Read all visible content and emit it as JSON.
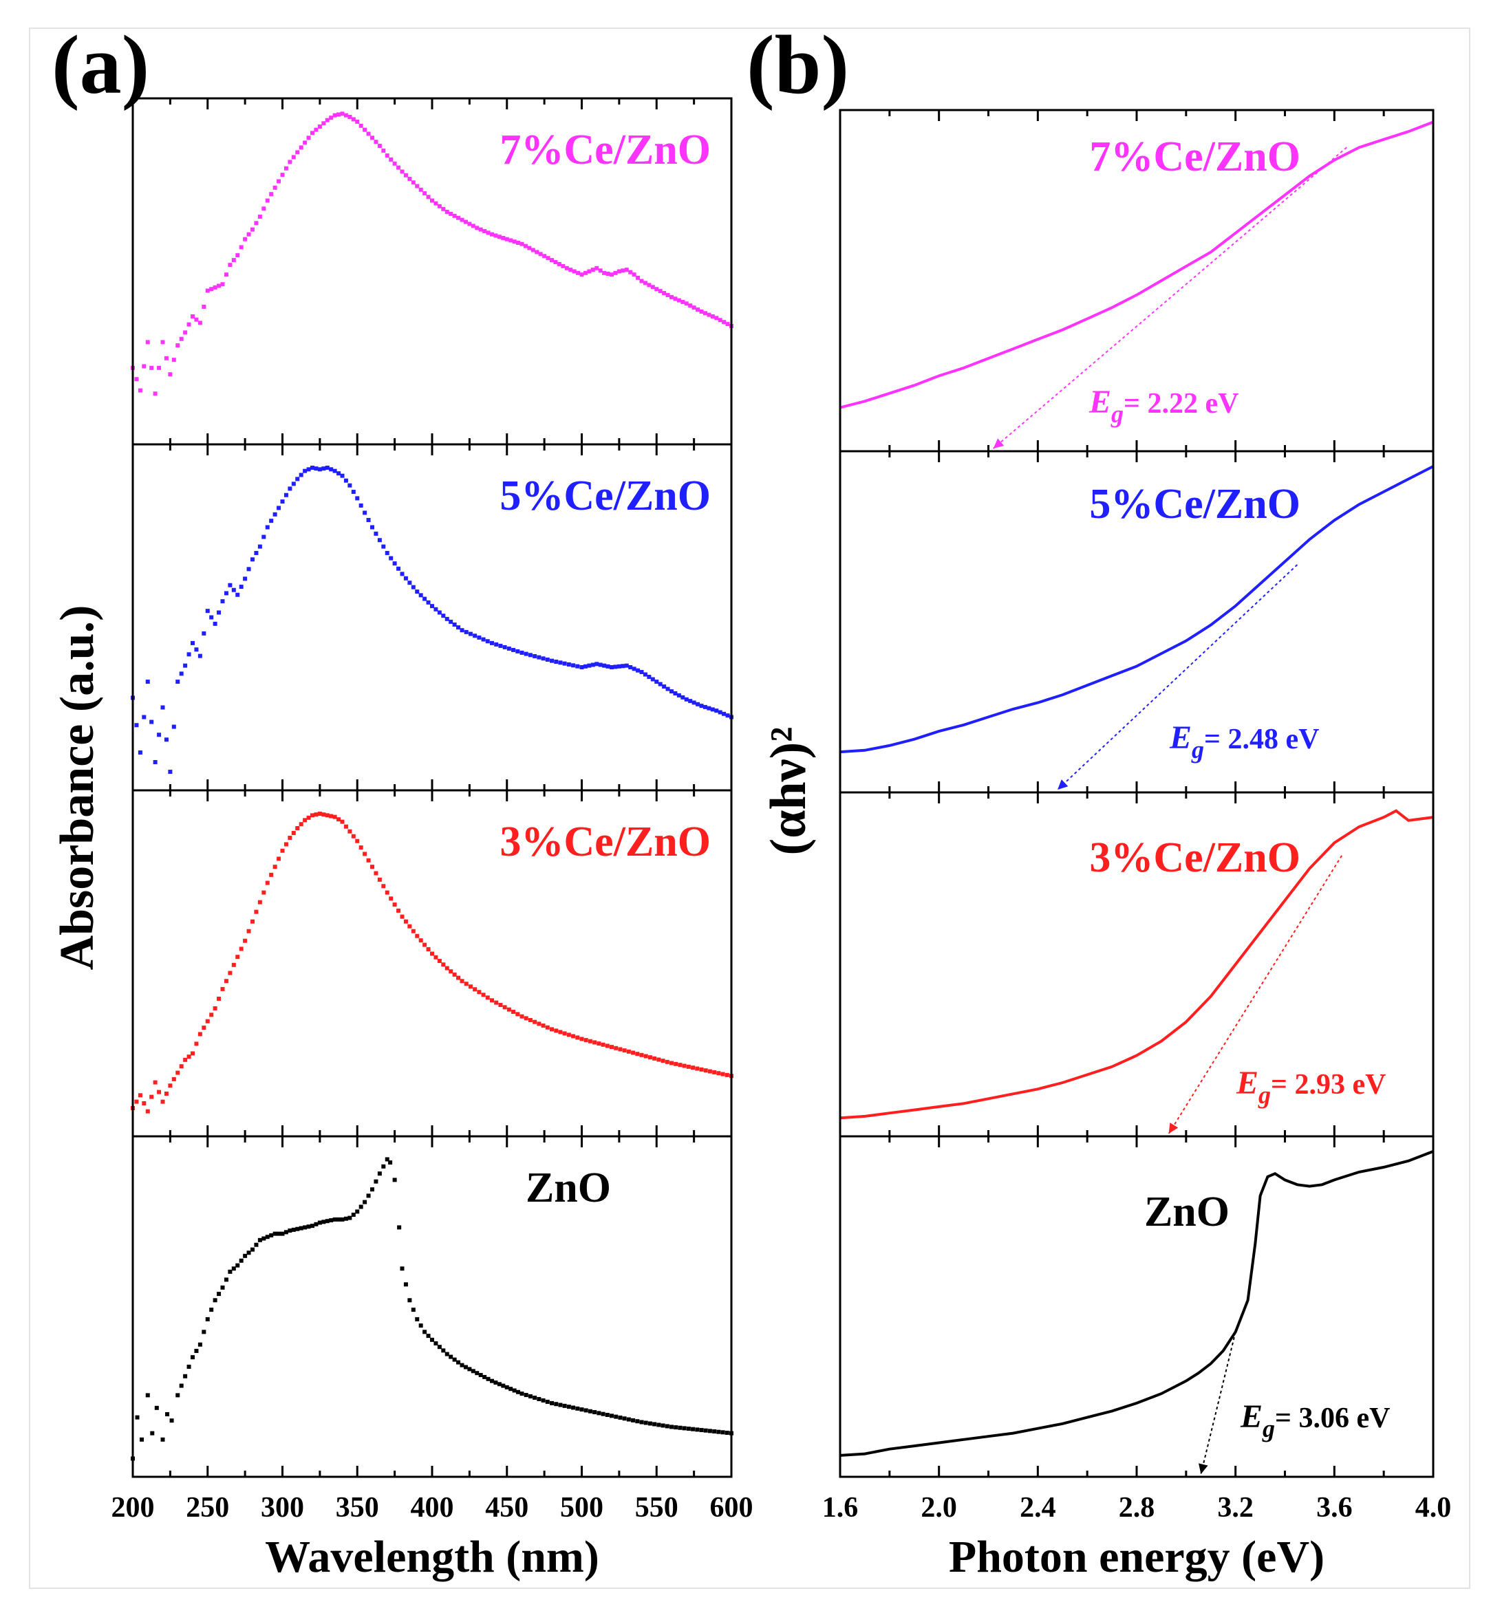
{
  "figure": {
    "panel_a_label": "(a)",
    "panel_b_label": "(b)"
  },
  "colors": {
    "ce7": "#ff33ff",
    "ce5": "#1f1fff",
    "ce3": "#ff1f1f",
    "zno": "#000000"
  },
  "chart_data": [
    {
      "type": "scatter",
      "panel": "a",
      "xlabel": "Wavelength (nm)",
      "ylabel": "Absorbance (a.u.)",
      "xlim": [
        200,
        600
      ],
      "xticks": [
        "200",
        "250",
        "300",
        "350",
        "400",
        "450",
        "500",
        "550",
        "600"
      ],
      "ylim": [
        0,
        1
      ],
      "grid": false,
      "series": [
        {
          "name": "7%Ce/ZnO",
          "color": "#ff33ff",
          "x": [
            200,
            205,
            210,
            215,
            220,
            225,
            230,
            235,
            240,
            245,
            250,
            255,
            260,
            265,
            270,
            275,
            280,
            285,
            290,
            295,
            300,
            305,
            310,
            315,
            320,
            325,
            330,
            335,
            340,
            345,
            350,
            355,
            360,
            365,
            370,
            375,
            380,
            390,
            400,
            410,
            420,
            430,
            440,
            450,
            460,
            470,
            480,
            490,
            500,
            505,
            510,
            515,
            520,
            525,
            530,
            535,
            540,
            550,
            560,
            570,
            580,
            590,
            600
          ],
          "y": [
            0.2,
            0.13,
            0.28,
            0.12,
            0.28,
            0.18,
            0.27,
            0.31,
            0.36,
            0.34,
            0.44,
            0.45,
            0.46,
            0.52,
            0.55,
            0.6,
            0.63,
            0.67,
            0.72,
            0.76,
            0.8,
            0.84,
            0.87,
            0.9,
            0.93,
            0.95,
            0.97,
            0.985,
            0.99,
            0.98,
            0.965,
            0.94,
            0.915,
            0.89,
            0.86,
            0.835,
            0.81,
            0.765,
            0.72,
            0.685,
            0.66,
            0.635,
            0.615,
            0.6,
            0.585,
            0.56,
            0.535,
            0.51,
            0.49,
            0.5,
            0.51,
            0.495,
            0.49,
            0.5,
            0.505,
            0.49,
            0.47,
            0.445,
            0.42,
            0.4,
            0.375,
            0.355,
            0.33
          ]
        },
        {
          "name": "5%Ce/ZnO",
          "color": "#1f1fff",
          "x": [
            200,
            205,
            210,
            215,
            220,
            225,
            230,
            235,
            240,
            245,
            250,
            255,
            260,
            265,
            270,
            275,
            280,
            285,
            290,
            295,
            300,
            305,
            310,
            315,
            320,
            325,
            330,
            335,
            340,
            345,
            350,
            360,
            370,
            380,
            390,
            400,
            410,
            420,
            440,
            460,
            480,
            500,
            505,
            510,
            520,
            530,
            540,
            550,
            560,
            570,
            580,
            590,
            600
          ],
          "y": [
            0.25,
            0.08,
            0.3,
            0.05,
            0.22,
            0.02,
            0.3,
            0.35,
            0.42,
            0.38,
            0.52,
            0.48,
            0.55,
            0.6,
            0.57,
            0.62,
            0.68,
            0.72,
            0.78,
            0.82,
            0.86,
            0.9,
            0.93,
            0.955,
            0.965,
            0.96,
            0.965,
            0.955,
            0.94,
            0.91,
            0.87,
            0.78,
            0.7,
            0.635,
            0.58,
            0.535,
            0.495,
            0.46,
            0.42,
            0.39,
            0.365,
            0.345,
            0.35,
            0.355,
            0.345,
            0.35,
            0.33,
            0.3,
            0.27,
            0.245,
            0.225,
            0.21,
            0.19
          ]
        },
        {
          "name": "3%Ce/ZnO",
          "color": "#ff1f1f",
          "x": [
            200,
            205,
            210,
            215,
            220,
            225,
            230,
            235,
            240,
            245,
            250,
            255,
            260,
            265,
            270,
            275,
            280,
            285,
            290,
            295,
            300,
            305,
            310,
            315,
            320,
            325,
            330,
            335,
            340,
            350,
            360,
            370,
            380,
            390,
            400,
            410,
            420,
            440,
            460,
            480,
            500,
            520,
            540,
            560,
            580,
            600
          ],
          "y": [
            0.05,
            0.09,
            0.04,
            0.13,
            0.07,
            0.12,
            0.16,
            0.2,
            0.22,
            0.28,
            0.32,
            0.36,
            0.42,
            0.47,
            0.52,
            0.57,
            0.63,
            0.69,
            0.75,
            0.8,
            0.85,
            0.89,
            0.92,
            0.945,
            0.96,
            0.965,
            0.96,
            0.955,
            0.94,
            0.88,
            0.8,
            0.72,
            0.645,
            0.585,
            0.53,
            0.485,
            0.445,
            0.385,
            0.335,
            0.295,
            0.265,
            0.24,
            0.215,
            0.19,
            0.17,
            0.15
          ]
        },
        {
          "name": "ZnO",
          "color": "#000000",
          "x": [
            200,
            203,
            206,
            210,
            213,
            216,
            220,
            223,
            226,
            230,
            235,
            240,
            245,
            250,
            255,
            260,
            265,
            270,
            275,
            280,
            285,
            290,
            295,
            300,
            305,
            310,
            315,
            320,
            325,
            330,
            335,
            340,
            345,
            350,
            355,
            360,
            365,
            370,
            372,
            375,
            378,
            380,
            385,
            390,
            395,
            400,
            410,
            420,
            430,
            440,
            450,
            460,
            480,
            500,
            520,
            540,
            560,
            580,
            600
          ],
          "y": [
            0.02,
            0.15,
            0.08,
            0.22,
            0.1,
            0.18,
            0.08,
            0.16,
            0.14,
            0.22,
            0.28,
            0.34,
            0.38,
            0.46,
            0.52,
            0.56,
            0.61,
            0.63,
            0.66,
            0.68,
            0.71,
            0.72,
            0.73,
            0.73,
            0.74,
            0.745,
            0.75,
            0.755,
            0.765,
            0.77,
            0.775,
            0.775,
            0.78,
            0.8,
            0.83,
            0.87,
            0.92,
            0.965,
            0.955,
            0.9,
            0.75,
            0.62,
            0.52,
            0.46,
            0.42,
            0.395,
            0.35,
            0.315,
            0.29,
            0.265,
            0.245,
            0.225,
            0.195,
            0.175,
            0.155,
            0.135,
            0.12,
            0.11,
            0.1
          ]
        }
      ]
    },
    {
      "type": "line",
      "panel": "b",
      "xlabel": "Photon energy (eV)",
      "ylabel": "(αhν)²",
      "xlim": [
        1.6,
        4.0
      ],
      "xticks": [
        "1.6",
        "2.0",
        "2.4",
        "2.8",
        "3.2",
        "3.6",
        "4.0"
      ],
      "ylim": [
        0,
        1
      ],
      "grid": false,
      "series": [
        {
          "name": "7%Ce/ZnO",
          "color": "#ff33ff",
          "eg_label": "E",
          "eg_sub": "g",
          "eg_value": "= 2.22 eV",
          "eg": 2.22,
          "x": [
            1.6,
            1.7,
            1.8,
            1.9,
            2.0,
            2.1,
            2.2,
            2.3,
            2.4,
            2.5,
            2.6,
            2.7,
            2.8,
            2.9,
            3.0,
            3.1,
            3.2,
            3.3,
            3.4,
            3.5,
            3.6,
            3.7,
            3.8,
            3.9,
            4.0
          ],
          "y": [
            0.1,
            0.12,
            0.145,
            0.17,
            0.2,
            0.225,
            0.255,
            0.285,
            0.315,
            0.345,
            0.38,
            0.415,
            0.455,
            0.5,
            0.545,
            0.59,
            0.65,
            0.71,
            0.77,
            0.83,
            0.88,
            0.92,
            0.945,
            0.97,
            1.0
          ],
          "tangent": [
            [
              2.22,
              0.0
            ],
            [
              3.65,
              0.92
            ]
          ]
        },
        {
          "name": "5%Ce/ZnO",
          "color": "#1f1fff",
          "eg_label": "E",
          "eg_sub": "g",
          "eg_value": "= 2.48 eV",
          "eg": 2.48,
          "x": [
            1.6,
            1.7,
            1.8,
            1.9,
            2.0,
            2.1,
            2.2,
            2.3,
            2.4,
            2.5,
            2.6,
            2.7,
            2.8,
            2.9,
            3.0,
            3.1,
            3.2,
            3.3,
            3.4,
            3.5,
            3.6,
            3.7,
            3.8,
            3.9,
            4.0
          ],
          "y": [
            0.09,
            0.095,
            0.11,
            0.13,
            0.155,
            0.175,
            0.2,
            0.225,
            0.245,
            0.27,
            0.3,
            0.33,
            0.36,
            0.4,
            0.44,
            0.49,
            0.55,
            0.62,
            0.69,
            0.76,
            0.82,
            0.87,
            0.91,
            0.95,
            0.99
          ],
          "tangent": [
            [
              2.48,
              0.0
            ],
            [
              3.45,
              0.68
            ]
          ]
        },
        {
          "name": "3%Ce/ZnO",
          "color": "#ff1f1f",
          "eg_label": "E",
          "eg_sub": "g",
          "eg_value": "= 2.93 eV",
          "eg": 2.93,
          "x": [
            1.6,
            1.7,
            1.8,
            1.9,
            2.0,
            2.1,
            2.2,
            2.3,
            2.4,
            2.5,
            2.6,
            2.7,
            2.8,
            2.9,
            3.0,
            3.1,
            3.2,
            3.3,
            3.4,
            3.5,
            3.6,
            3.7,
            3.8,
            3.85,
            3.9,
            4.0
          ],
          "y": [
            0.02,
            0.025,
            0.035,
            0.045,
            0.055,
            0.065,
            0.08,
            0.095,
            0.11,
            0.13,
            0.155,
            0.18,
            0.215,
            0.26,
            0.32,
            0.4,
            0.5,
            0.6,
            0.7,
            0.8,
            0.88,
            0.93,
            0.96,
            0.98,
            0.95,
            0.96
          ],
          "tangent": [
            [
              2.93,
              0.0
            ],
            [
              3.63,
              0.84
            ]
          ]
        },
        {
          "name": "ZnO",
          "color": "#000000",
          "eg_label": "E",
          "eg_sub": "g",
          "eg_value": "= 3.06 eV",
          "eg": 3.06,
          "x": [
            1.6,
            1.7,
            1.8,
            1.9,
            2.0,
            2.1,
            2.2,
            2.3,
            2.4,
            2.5,
            2.6,
            2.7,
            2.8,
            2.9,
            3.0,
            3.05,
            3.1,
            3.15,
            3.2,
            3.25,
            3.28,
            3.3,
            3.33,
            3.36,
            3.4,
            3.45,
            3.5,
            3.55,
            3.6,
            3.7,
            3.8,
            3.9,
            4.0
          ],
          "y": [
            0.03,
            0.035,
            0.05,
            0.06,
            0.07,
            0.08,
            0.09,
            0.1,
            0.115,
            0.13,
            0.15,
            0.17,
            0.195,
            0.225,
            0.265,
            0.29,
            0.32,
            0.36,
            0.42,
            0.52,
            0.7,
            0.85,
            0.91,
            0.92,
            0.9,
            0.885,
            0.88,
            0.885,
            0.9,
            0.925,
            0.94,
            0.96,
            0.99
          ],
          "tangent": [
            [
              3.06,
              0.0
            ],
            [
              3.2,
              0.42
            ]
          ]
        }
      ]
    }
  ]
}
